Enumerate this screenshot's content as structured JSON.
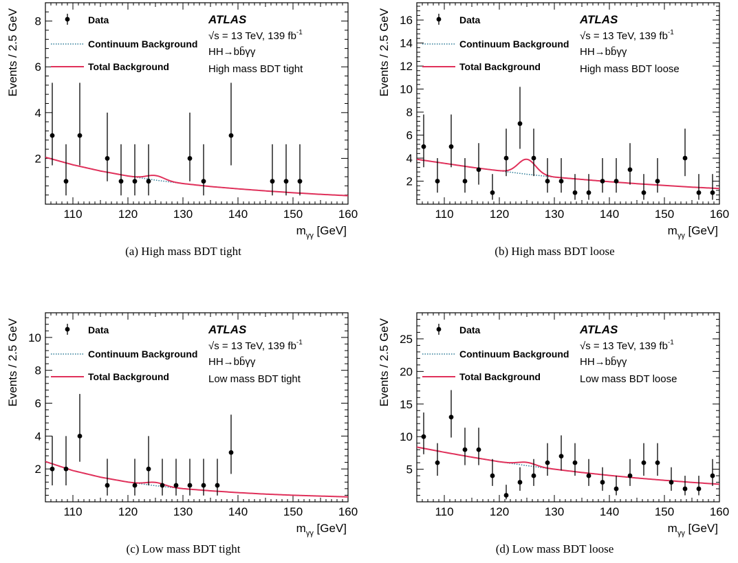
{
  "shared": {
    "ylabel": "Events /  2.5 GeV",
    "legend": {
      "data": "Data",
      "continuum": "Continuum Background",
      "total": "Total Background"
    },
    "atlas": "ATLAS",
    "energy_label": "√s = 13 TeV, 139 fb",
    "energy_sup": "-1",
    "process_label": "HH→bb̄γγ",
    "xlabel_main": "m",
    "xlabel_sub": "γγ",
    "xlabel_unit": " [GeV]",
    "colors": {
      "total": "#e0305a",
      "continuum": "#2b7a96",
      "data": "#000000"
    }
  },
  "chart_data": [
    {
      "type": "scatter",
      "panel": "a",
      "caption": "(a) High mass BDT tight",
      "category": "High mass BDT tight",
      "xlim": [
        105,
        160
      ],
      "ylim": [
        0,
        8.8
      ],
      "xticks": [
        110,
        120,
        130,
        140,
        150,
        160
      ],
      "yticks": [
        2,
        4,
        6,
        8
      ],
      "points": [
        [
          106.25,
          3
        ],
        [
          108.75,
          1
        ],
        [
          111.25,
          3
        ],
        [
          116.25,
          2
        ],
        [
          118.75,
          1
        ],
        [
          121.25,
          1
        ],
        [
          123.75,
          1
        ],
        [
          131.25,
          2
        ],
        [
          133.75,
          1
        ],
        [
          138.75,
          3
        ],
        [
          146.25,
          1
        ],
        [
          148.75,
          1
        ],
        [
          151.25,
          1
        ]
      ],
      "continuum": [
        [
          105,
          2.05
        ],
        [
          110,
          1.72
        ],
        [
          115,
          1.45
        ],
        [
          120,
          1.23
        ],
        [
          125,
          1.05
        ],
        [
          130,
          0.9
        ],
        [
          135,
          0.77
        ],
        [
          140,
          0.67
        ],
        [
          145,
          0.58
        ],
        [
          150,
          0.5
        ],
        [
          155,
          0.43
        ],
        [
          160,
          0.37
        ]
      ],
      "signal_norm": 0.2,
      "grid": false,
      "legend_position": "top-left"
    },
    {
      "type": "scatter",
      "panel": "b",
      "caption": "(b) High mass BDT loose",
      "category": "High mass BDT loose",
      "xlim": [
        105,
        160
      ],
      "ylim": [
        0,
        17.5
      ],
      "xticks": [
        110,
        120,
        130,
        140,
        150,
        160
      ],
      "yticks": [
        2,
        4,
        6,
        8,
        10,
        12,
        14,
        16
      ],
      "points": [
        [
          106.25,
          5
        ],
        [
          108.75,
          2
        ],
        [
          111.25,
          5
        ],
        [
          113.75,
          2
        ],
        [
          116.25,
          3
        ],
        [
          118.75,
          1
        ],
        [
          121.25,
          4
        ],
        [
          123.75,
          7
        ],
        [
          126.25,
          4
        ],
        [
          128.75,
          2
        ],
        [
          131.25,
          2
        ],
        [
          133.75,
          1
        ],
        [
          136.25,
          1
        ],
        [
          138.75,
          2
        ],
        [
          141.25,
          2
        ],
        [
          143.75,
          3
        ],
        [
          146.25,
          1
        ],
        [
          148.75,
          2
        ],
        [
          153.75,
          4
        ],
        [
          156.25,
          1
        ],
        [
          158.75,
          1
        ]
      ],
      "continuum": [
        [
          105,
          3.9
        ],
        [
          110,
          3.55
        ],
        [
          115,
          3.2
        ],
        [
          120,
          2.9
        ],
        [
          125,
          2.6
        ],
        [
          130,
          2.35
        ],
        [
          135,
          2.15
        ],
        [
          140,
          1.95
        ],
        [
          145,
          1.78
        ],
        [
          150,
          1.63
        ],
        [
          155,
          1.48
        ],
        [
          160,
          1.36
        ]
      ],
      "signal_norm": 1.3,
      "grid": false,
      "legend_position": "top-left"
    },
    {
      "type": "scatter",
      "panel": "c",
      "caption": "(c) Low mass BDT tight",
      "category": "Low mass BDT tight",
      "xlim": [
        105,
        160
      ],
      "ylim": [
        0,
        11.5
      ],
      "xticks": [
        110,
        120,
        130,
        140,
        150,
        160
      ],
      "yticks": [
        2,
        4,
        6,
        8,
        10
      ],
      "points": [
        [
          106.25,
          2
        ],
        [
          108.75,
          2
        ],
        [
          111.25,
          4
        ],
        [
          116.25,
          1
        ],
        [
          121.25,
          1
        ],
        [
          123.75,
          2
        ],
        [
          126.25,
          1
        ],
        [
          128.75,
          1
        ],
        [
          131.25,
          1
        ],
        [
          133.75,
          1
        ],
        [
          136.25,
          1
        ],
        [
          138.75,
          3
        ]
      ],
      "continuum": [
        [
          105,
          2.45
        ],
        [
          110,
          1.9
        ],
        [
          115,
          1.5
        ],
        [
          120,
          1.2
        ],
        [
          125,
          0.98
        ],
        [
          130,
          0.8
        ],
        [
          135,
          0.67
        ],
        [
          140,
          0.56
        ],
        [
          145,
          0.47
        ],
        [
          150,
          0.4
        ],
        [
          155,
          0.35
        ],
        [
          160,
          0.3
        ]
      ],
      "signal_norm": 0.2,
      "grid": false,
      "legend_position": "top-left"
    },
    {
      "type": "scatter",
      "panel": "d",
      "caption": "(d) Low mass BDT loose",
      "category": "Low mass BDT loose",
      "xlim": [
        105,
        160
      ],
      "ylim": [
        0,
        29
      ],
      "xticks": [
        110,
        120,
        130,
        140,
        150,
        160
      ],
      "yticks": [
        5,
        10,
        15,
        20,
        25
      ],
      "points": [
        [
          106.25,
          10
        ],
        [
          108.75,
          6
        ],
        [
          111.25,
          13
        ],
        [
          113.75,
          8
        ],
        [
          116.25,
          8
        ],
        [
          118.75,
          4
        ],
        [
          121.25,
          1
        ],
        [
          123.75,
          3
        ],
        [
          126.25,
          4
        ],
        [
          128.75,
          6
        ],
        [
          131.25,
          7
        ],
        [
          133.75,
          6
        ],
        [
          136.25,
          4
        ],
        [
          138.75,
          3
        ],
        [
          141.25,
          2
        ],
        [
          143.75,
          4
        ],
        [
          146.25,
          6
        ],
        [
          148.75,
          6
        ],
        [
          151.25,
          3
        ],
        [
          153.75,
          2
        ],
        [
          156.25,
          2
        ],
        [
          158.75,
          4
        ]
      ],
      "continuum": [
        [
          105,
          8.4
        ],
        [
          110,
          7.6
        ],
        [
          115,
          6.85
        ],
        [
          120,
          6.15
        ],
        [
          125,
          5.55
        ],
        [
          130,
          5.0
        ],
        [
          135,
          4.5
        ],
        [
          140,
          4.05
        ],
        [
          145,
          3.65
        ],
        [
          150,
          3.3
        ],
        [
          155,
          2.98
        ],
        [
          160,
          2.7
        ]
      ],
      "signal_norm": 0.5,
      "grid": false,
      "legend_position": "top-left"
    }
  ]
}
